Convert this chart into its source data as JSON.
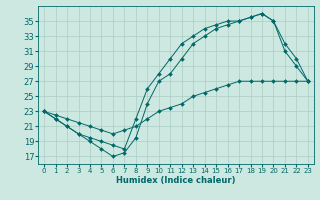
{
  "xlabel": "Humidex (Indice chaleur)",
  "bg_color": "#cce8e0",
  "grid_color": "#aaccc4",
  "line_color": "#006868",
  "xlim": [
    -0.5,
    23.5
  ],
  "ylim": [
    16,
    37
  ],
  "xticks": [
    0,
    1,
    2,
    3,
    4,
    5,
    6,
    7,
    8,
    9,
    10,
    11,
    12,
    13,
    14,
    15,
    16,
    17,
    18,
    19,
    20,
    21,
    22,
    23
  ],
  "yticks": [
    17,
    19,
    21,
    23,
    25,
    27,
    29,
    31,
    33,
    35
  ],
  "series1_x": [
    0,
    1,
    2,
    3,
    4,
    5,
    6,
    7,
    8,
    9,
    10,
    11,
    12,
    13,
    14,
    15,
    16,
    17,
    18,
    19,
    20,
    21,
    22,
    23
  ],
  "series1_y": [
    23,
    22,
    21,
    20,
    19,
    18,
    17,
    17.5,
    19.5,
    24,
    27,
    28,
    30,
    32,
    33,
    34,
    34.5,
    35,
    35.5,
    36,
    35,
    32,
    30,
    27
  ],
  "series2_x": [
    0,
    1,
    2,
    3,
    4,
    5,
    6,
    7,
    8,
    9,
    10,
    11,
    12,
    13,
    14,
    15,
    16,
    17,
    18,
    19,
    20,
    21,
    22,
    23
  ],
  "series2_y": [
    23,
    22,
    21,
    20,
    19.5,
    19,
    18.5,
    18,
    22,
    26,
    28,
    30,
    32,
    33,
    34,
    34.5,
    35,
    35,
    35.5,
    36,
    35,
    31,
    29,
    27
  ],
  "series3_x": [
    0,
    1,
    2,
    3,
    4,
    5,
    6,
    7,
    8,
    9,
    10,
    11,
    12,
    13,
    14,
    15,
    16,
    17,
    18,
    19,
    20,
    21,
    22,
    23
  ],
  "series3_y": [
    23,
    22.5,
    22,
    21.5,
    21,
    20.5,
    20,
    20.5,
    21,
    22,
    23,
    23.5,
    24,
    25,
    25.5,
    26,
    26.5,
    27,
    27,
    27,
    27,
    27,
    27,
    27
  ]
}
